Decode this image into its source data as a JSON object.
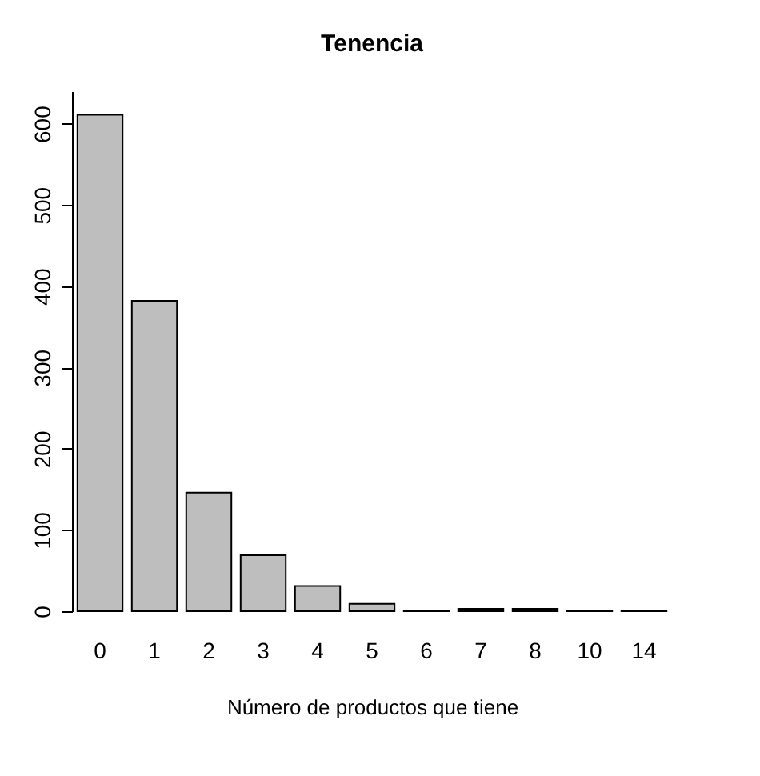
{
  "chart_data": {
    "type": "bar",
    "title": "Tenencia",
    "xlabel": "Número de productos que tiene",
    "categories": [
      "0",
      "1",
      "2",
      "3",
      "4",
      "5",
      "6",
      "7",
      "8",
      "10",
      "14"
    ],
    "values": [
      611,
      382,
      146,
      69,
      31,
      9,
      1,
      3,
      3,
      1,
      1
    ],
    "color": "#bebebe",
    "ylim": [
      0,
      640
    ],
    "yticks": [
      0,
      100,
      200,
      300,
      400,
      500,
      600
    ],
    "grid": false
  }
}
